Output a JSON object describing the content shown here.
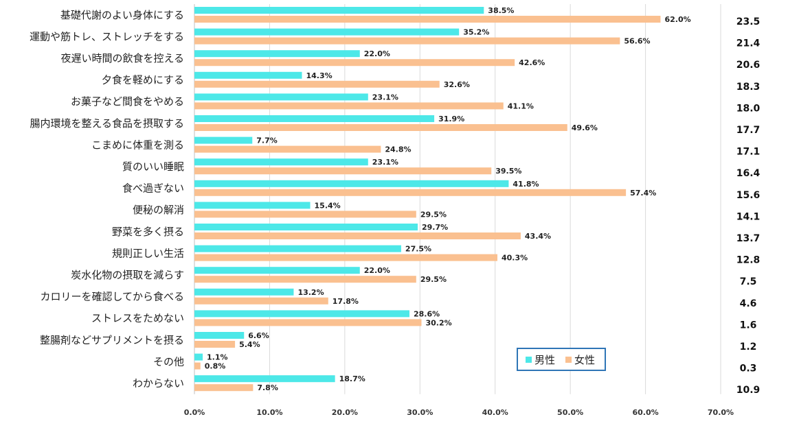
{
  "chart_data": {
    "type": "bar",
    "orientation": "horizontal",
    "categories": [
      "基礎代謝のよい身体にする",
      "運動や筋トレ、ストレッチをする",
      "夜遅い時間の飲食を控える",
      "夕食を軽めにする",
      "お菓子など間食をやめる",
      "腸内環境を整える食品を摂取する",
      "こまめに体重を測る",
      "質のいい睡眠",
      "食べ過ぎない",
      "便秘の解消",
      "野菜を多く摂る",
      "規則正しい生活",
      "炭水化物の摂取を減らす",
      "カロリーを確認してから食べる",
      "ストレスをためない",
      "整腸剤などサプリメントを摂る",
      "その他",
      "わからない"
    ],
    "series": [
      {
        "name": "男性",
        "color": "#4de8e8",
        "values": [
          38.5,
          35.2,
          22.0,
          14.3,
          23.1,
          31.9,
          7.7,
          23.1,
          41.8,
          15.4,
          29.7,
          27.5,
          22.0,
          13.2,
          28.6,
          6.6,
          1.1,
          18.7
        ],
        "labels": [
          "38.5%",
          "35.2%",
          "22.0%",
          "14.3%",
          "23.1%",
          "31.9%",
          "7.7%",
          "23.1%",
          "41.8%",
          "15.4%",
          "29.7%",
          "27.5%",
          "22.0%",
          "13.2%",
          "28.6%",
          "6.6%",
          "1.1%",
          "18.7%"
        ]
      },
      {
        "name": "女性",
        "color": "#fac090",
        "values": [
          62.0,
          56.6,
          42.6,
          32.6,
          41.1,
          49.6,
          24.8,
          39.5,
          57.4,
          29.5,
          43.4,
          40.3,
          29.5,
          17.8,
          30.2,
          5.4,
          0.8,
          7.8
        ],
        "labels": [
          "62.0%",
          "56.6%",
          "42.6%",
          "32.6%",
          "41.1%",
          "49.6%",
          "24.8%",
          "39.5%",
          "57.4%",
          "29.5%",
          "43.4%",
          "40.3%",
          "29.5%",
          "17.8%",
          "30.2%",
          "5.4%",
          "0.8%",
          "7.8%"
        ]
      }
    ],
    "difference_column": [
      "23.5",
      "21.4",
      "20.6",
      "18.3",
      "18.0",
      "17.7",
      "17.1",
      "16.4",
      "15.6",
      "14.1",
      "13.7",
      "12.8",
      "7.5",
      "4.6",
      "1.6",
      "1.2",
      "0.3",
      "10.9"
    ],
    "x_ticks": [
      "0.0%",
      "10.0%",
      "20.0%",
      "30.0%",
      "40.0%",
      "50.0%",
      "60.0%",
      "70.0%"
    ],
    "xlim": [
      0,
      70
    ],
    "grid": true,
    "legend_position": "bottom-right"
  }
}
